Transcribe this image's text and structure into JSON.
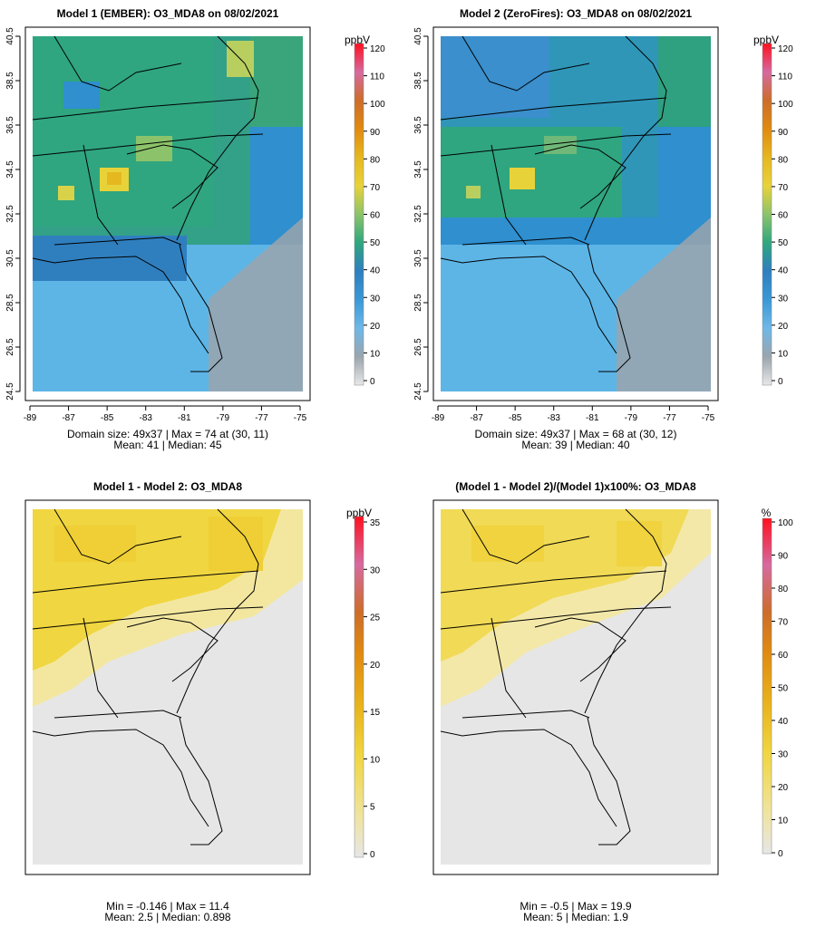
{
  "panels": [
    {
      "title": "Model 1 (EMBER): O3_MDA8 on 08/02/2021",
      "colorbar": {
        "unit": "ppbV",
        "ticks": [
          "0",
          "10",
          "20",
          "30",
          "40",
          "50",
          "60",
          "70",
          "80",
          "90",
          "100",
          "110",
          "120"
        ]
      },
      "stats_line1": "Domain size: 49x37 | Max = 74 at (30, 11)",
      "stats_line2": "Mean: 41 |  Median: 45",
      "xticks": [
        "-89",
        "-87",
        "-85",
        "-83",
        "-81",
        "-79",
        "-77",
        "-75"
      ],
      "yticks": [
        "24.5",
        "26.5",
        "28.5",
        "30.5",
        "32.5",
        "34.5",
        "36.5",
        "38.5",
        "40.5"
      ]
    },
    {
      "title": "Model 2 (ZeroFires): O3_MDA8 on 08/02/2021",
      "colorbar": {
        "unit": "ppbV",
        "ticks": [
          "0",
          "10",
          "20",
          "30",
          "40",
          "50",
          "60",
          "70",
          "80",
          "90",
          "100",
          "110",
          "120"
        ]
      },
      "stats_line1": "Domain size: 49x37 | Max = 68 at (30, 12)",
      "stats_line2": "Mean: 39 |  Median: 40",
      "xticks": [
        "-89",
        "-87",
        "-85",
        "-83",
        "-81",
        "-79",
        "-77",
        "-75"
      ],
      "yticks": [
        "24.5",
        "26.5",
        "28.5",
        "30.5",
        "32.5",
        "34.5",
        "36.5",
        "38.5",
        "40.5"
      ]
    },
    {
      "title": "Model 1 - Model 2: O3_MDA8",
      "colorbar": {
        "unit": "ppbV",
        "ticks": [
          "0",
          "5",
          "10",
          "15",
          "20",
          "25",
          "30",
          "35"
        ]
      },
      "stats_line1": "Min = -0.146 | Max = 11.4",
      "stats_line2": "Mean: 2.5 |  Median: 0.898"
    },
    {
      "title": "(Model 1 - Model 2)/(Model 1)x100%: O3_MDA8",
      "colorbar": {
        "unit": "%",
        "ticks": [
          "0",
          "10",
          "20",
          "30",
          "40",
          "50",
          "60",
          "70",
          "80",
          "90",
          "100"
        ]
      },
      "stats_line1": "Min = -0.5 | Max = 19.9",
      "stats_line2": "Mean: 5 |  Median: 1.9"
    }
  ],
  "colors": {
    "blue_low": "#5db5e6",
    "blue_mid": "#2f8fcf",
    "green": "#2fa67f",
    "yellow": "#e8d23a",
    "gray_sea": "#9aa5ad",
    "diff_yellow": "#f0d640",
    "diff_gray": "#e6e6e6"
  },
  "chart_data": [
    {
      "type": "heatmap",
      "title": "Model 1 (EMBER): O3_MDA8 on 08/02/2021",
      "xlabel": "",
      "ylabel": "",
      "xlim": [
        -89,
        -75
      ],
      "ylim": [
        24.5,
        40.5
      ],
      "x_ticks": [
        -89,
        -87,
        -85,
        -83,
        -81,
        -79,
        -77,
        -75
      ],
      "y_ticks": [
        24.5,
        26.5,
        28.5,
        30.5,
        32.5,
        34.5,
        36.5,
        38.5,
        40.5
      ],
      "colorbar_unit": "ppbV",
      "colorbar_range": [
        0,
        120
      ],
      "domain_size": "49x37",
      "max": 74,
      "max_at": [
        30,
        11
      ],
      "mean": 41,
      "median": 45
    },
    {
      "type": "heatmap",
      "title": "Model 2 (ZeroFires): O3_MDA8 on 08/02/2021",
      "xlabel": "",
      "ylabel": "",
      "xlim": [
        -89,
        -75
      ],
      "ylim": [
        24.5,
        40.5
      ],
      "x_ticks": [
        -89,
        -87,
        -85,
        -83,
        -81,
        -79,
        -77,
        -75
      ],
      "y_ticks": [
        24.5,
        26.5,
        28.5,
        30.5,
        32.5,
        34.5,
        36.5,
        38.5,
        40.5
      ],
      "colorbar_unit": "ppbV",
      "colorbar_range": [
        0,
        120
      ],
      "domain_size": "49x37",
      "max": 68,
      "max_at": [
        30,
        12
      ],
      "mean": 39,
      "median": 40
    },
    {
      "type": "heatmap",
      "title": "Model 1 - Model 2: O3_MDA8",
      "colorbar_unit": "ppbV",
      "colorbar_range": [
        0,
        35
      ],
      "min": -0.146,
      "max": 11.4,
      "mean": 2.5,
      "median": 0.898
    },
    {
      "type": "heatmap",
      "title": "(Model 1 - Model 2)/(Model 1)x100%: O3_MDA8",
      "colorbar_unit": "%",
      "colorbar_range": [
        0,
        100
      ],
      "min": -0.5,
      "max": 19.9,
      "mean": 5,
      "median": 1.9
    }
  ]
}
